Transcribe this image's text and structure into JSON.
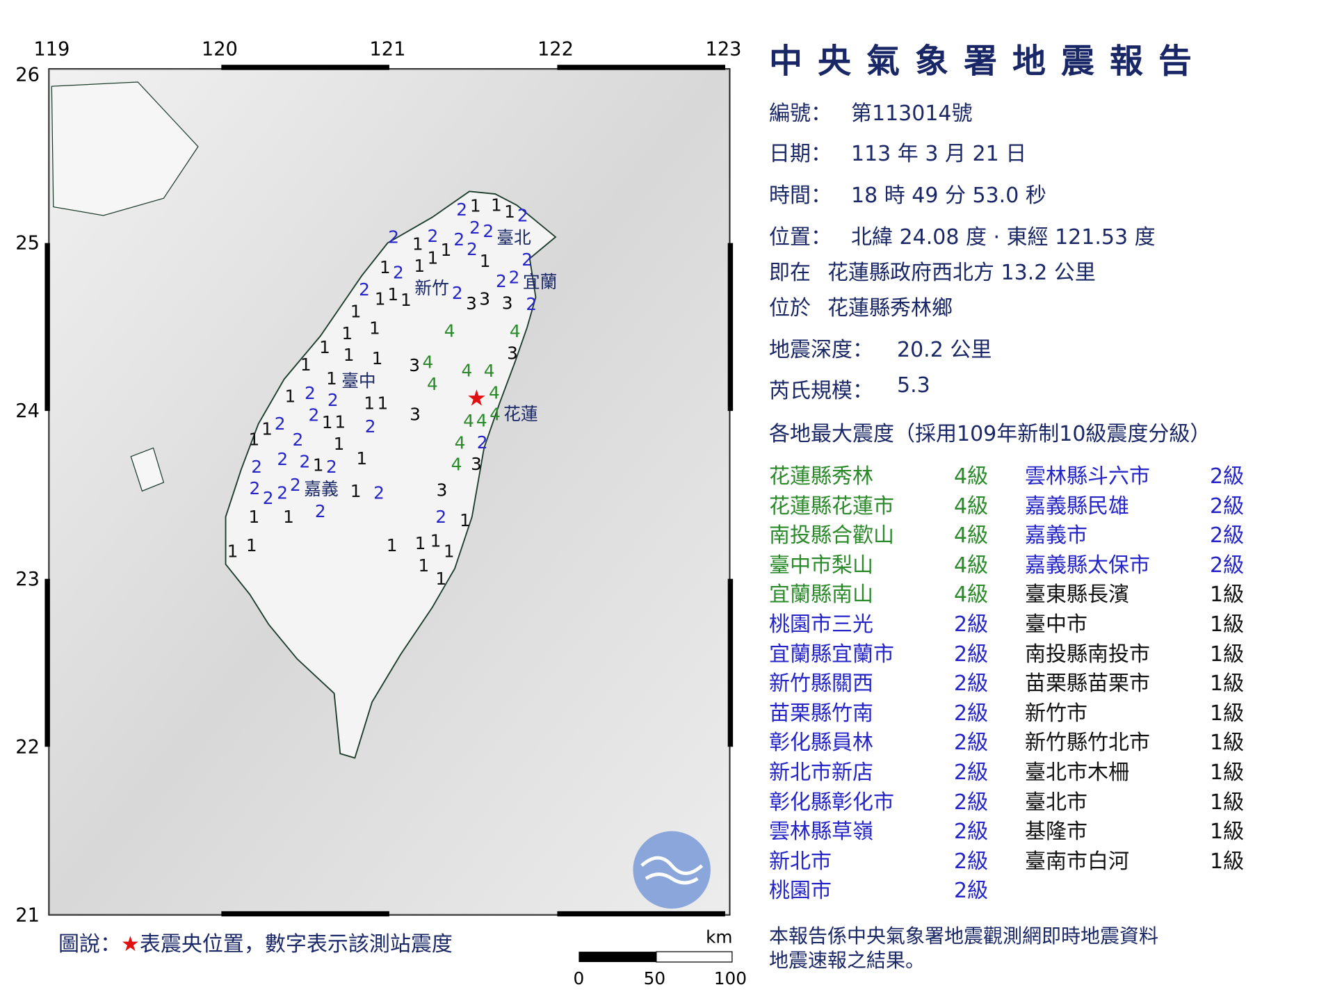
{
  "report": {
    "title": "中央氣象署地震報告",
    "number_label": "編號：",
    "number": "第113014號",
    "date_label": "日期：",
    "date": "113 年 3 月 21 日",
    "time_label": "時間：",
    "time": "18 時 49 分 53.0 秒",
    "location_label": "位置：",
    "location": "北緯 24.08 度 · 東經 121.53 度",
    "relative_label": "即在",
    "relative": "花蓮縣政府西北方 13.2 公里",
    "area_label": "位於",
    "area": "花蓮縣秀林鄉",
    "depth_label": "地震深度：",
    "depth": "20.2 公里",
    "magnitude_label": "芮氏規模：",
    "magnitude": "5.3",
    "intensity_heading": "各地最大震度（採用109年新制10級震度分級）",
    "intensities": [
      {
        "place": "花蓮縣秀林",
        "level": "4級"
      },
      {
        "place": "花蓮縣花蓮市",
        "level": "4級"
      },
      {
        "place": "南投縣合歡山",
        "level": "4級"
      },
      {
        "place": "臺中市梨山",
        "level": "4級"
      },
      {
        "place": "宜蘭縣南山",
        "level": "4級"
      },
      {
        "place": "桃園市三光",
        "level": "2級"
      },
      {
        "place": "宜蘭縣宜蘭市",
        "level": "2級"
      },
      {
        "place": "新竹縣關西",
        "level": "2級"
      },
      {
        "place": "苗栗縣竹南",
        "level": "2級"
      },
      {
        "place": "彰化縣員林",
        "level": "2級"
      },
      {
        "place": "新北市新店",
        "level": "2級"
      },
      {
        "place": "彰化縣彰化市",
        "level": "2級"
      },
      {
        "place": "雲林縣草嶺",
        "level": "2級"
      },
      {
        "place": "新北市",
        "level": "2級"
      },
      {
        "place": "桃園市",
        "level": "2級"
      },
      {
        "place": "雲林縣斗六市",
        "level": "2級"
      },
      {
        "place": "嘉義縣民雄",
        "level": "2級"
      },
      {
        "place": "嘉義市",
        "level": "2級"
      },
      {
        "place": "嘉義縣太保市",
        "level": "2級"
      },
      {
        "place": "臺東縣長濱",
        "level": "1級"
      },
      {
        "place": "臺中市",
        "level": "1級"
      },
      {
        "place": "南投縣南投市",
        "level": "1級"
      },
      {
        "place": "苗栗縣苗栗市",
        "level": "1級"
      },
      {
        "place": "新竹市",
        "level": "1級"
      },
      {
        "place": "新竹縣竹北市",
        "level": "1級"
      },
      {
        "place": "臺北市木柵",
        "level": "1級"
      },
      {
        "place": "臺北市",
        "level": "1級"
      },
      {
        "place": "基隆市",
        "level": "1級"
      },
      {
        "place": "臺南市白河",
        "level": "1級"
      }
    ],
    "note_line1": "本報告係中央氣象署地震觀測網即時地震資料",
    "note_line2": "地震速報之結果。"
  },
  "map": {
    "lon_ticks": [
      "119",
      "120",
      "121",
      "122",
      "123"
    ],
    "lat_ticks": [
      "26",
      "25",
      "24",
      "23",
      "22",
      "21"
    ],
    "city_labels": [
      "臺北",
      "新竹",
      "宜蘭",
      "臺中",
      "花蓮",
      "嘉義"
    ],
    "epicenter": {
      "lat": 24.08,
      "lon": 121.53
    },
    "legend_prefix": "圖說：",
    "legend_star": "★",
    "legend_text": "表震央位置，數字表示該測站震度",
    "scale_unit": "km",
    "scale_ticks": [
      "0",
      "50",
      "100"
    ],
    "colors": {
      "level4": "#2a8a2a",
      "level2": "#2424c8",
      "level1": "#111111",
      "epicenter": "#e01010"
    }
  }
}
